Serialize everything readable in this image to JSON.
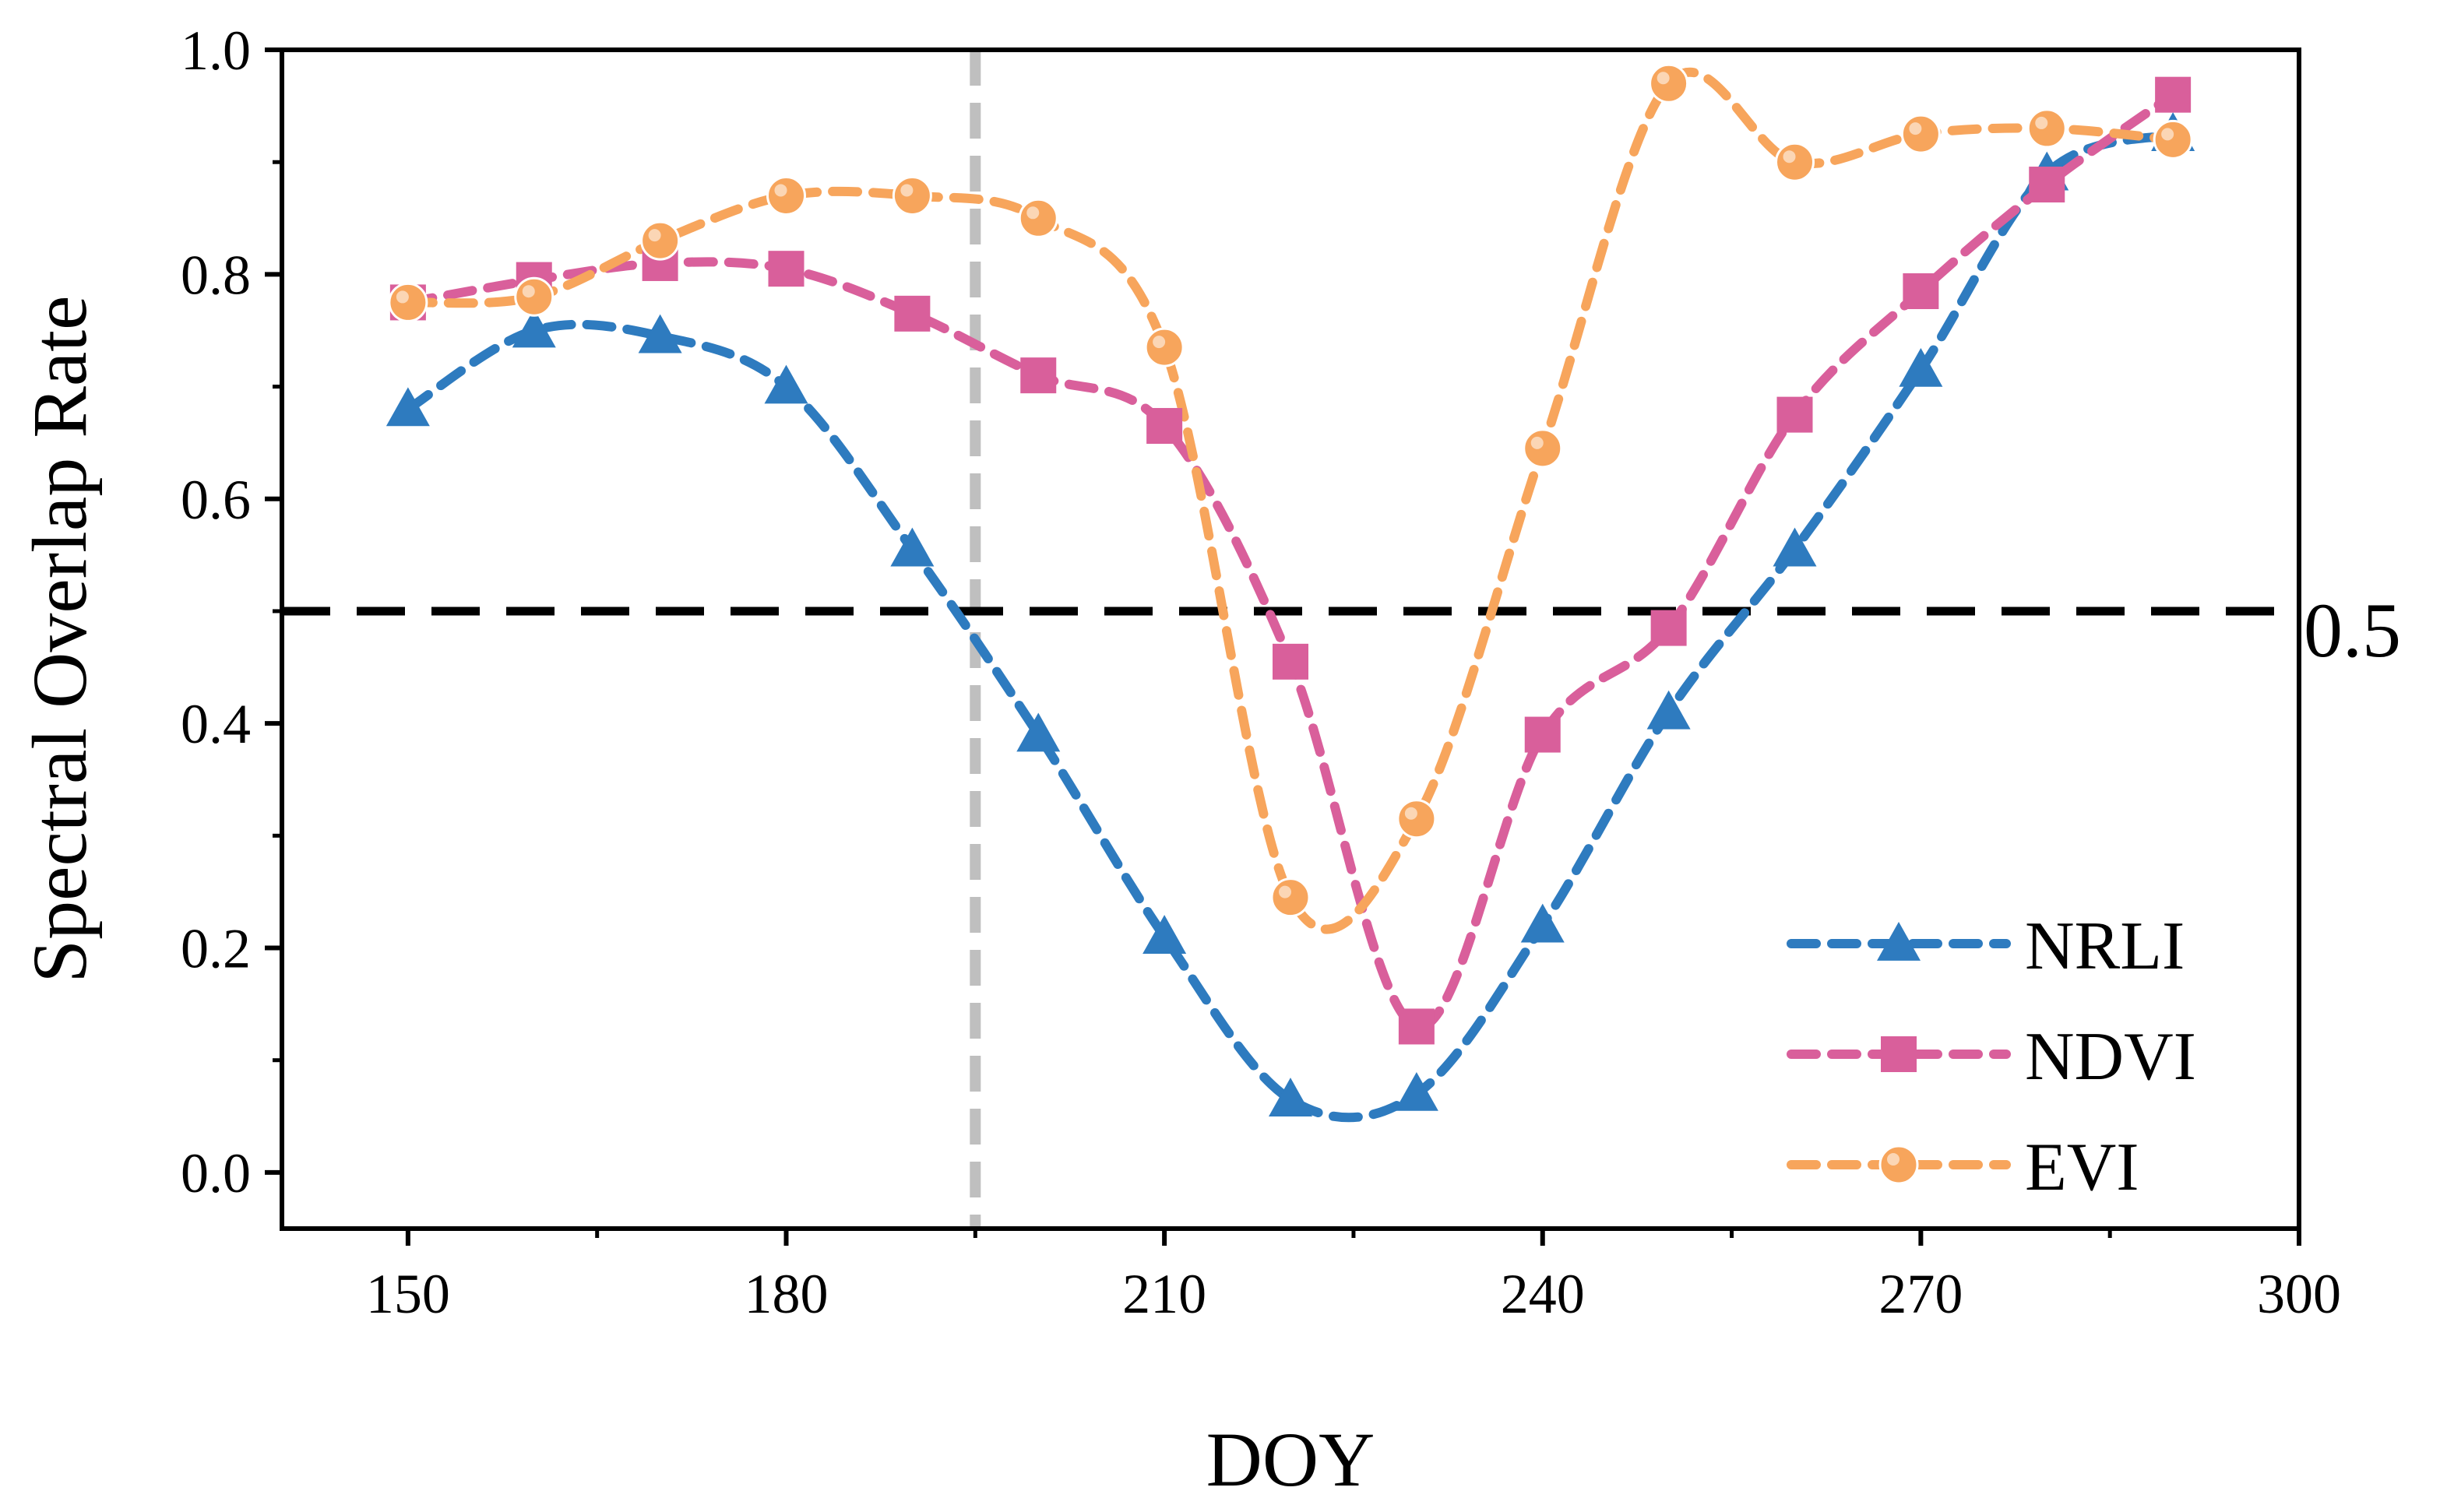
{
  "chart_data": {
    "type": "line",
    "title": "",
    "xlabel": "DOY",
    "ylabel": "Spectral Overlap Rate",
    "xlim": [
      140,
      300
    ],
    "ylim": [
      -0.05,
      1.0
    ],
    "xticks": [
      150,
      180,
      210,
      240,
      270,
      300
    ],
    "xtick_labels": [
      "150",
      "180",
      "210",
      "240",
      "270",
      "300"
    ],
    "yticks": [
      0.0,
      0.2,
      0.4,
      0.6,
      0.8,
      1.0
    ],
    "ytick_labels": [
      "0.0",
      "0.2",
      "0.4",
      "0.6",
      "0.8",
      "1.0"
    ],
    "grid": false,
    "legend_position": "bottom-right",
    "reference_lines": {
      "horizontal": {
        "y": 0.5,
        "label": "0.5",
        "color": "#000000"
      },
      "vertical": {
        "x": 195,
        "color": "#bfbfbf"
      }
    },
    "x": [
      150,
      160,
      170,
      180,
      190,
      200,
      210,
      220,
      230,
      240,
      250,
      260,
      270,
      280,
      290
    ],
    "series": [
      {
        "name": "NRLI",
        "marker": "triangle",
        "color": "#2e7bbf",
        "values": [
          0.68,
          0.75,
          0.745,
          0.7,
          0.555,
          0.39,
          0.21,
          0.065,
          0.07,
          0.22,
          0.41,
          0.555,
          0.715,
          0.89,
          0.925
        ]
      },
      {
        "name": "NDVI",
        "marker": "square",
        "color": "#d95f9b",
        "values": [
          0.775,
          0.795,
          0.81,
          0.805,
          0.765,
          0.71,
          0.665,
          0.455,
          0.13,
          0.39,
          0.485,
          0.675,
          0.785,
          0.88,
          0.96
        ]
      },
      {
        "name": "EVI",
        "marker": "circle",
        "color": "#f7a55c",
        "values": [
          0.775,
          0.78,
          0.83,
          0.87,
          0.87,
          0.85,
          0.735,
          0.245,
          0.315,
          0.645,
          0.97,
          0.9,
          0.925,
          0.93,
          0.92
        ]
      }
    ]
  }
}
